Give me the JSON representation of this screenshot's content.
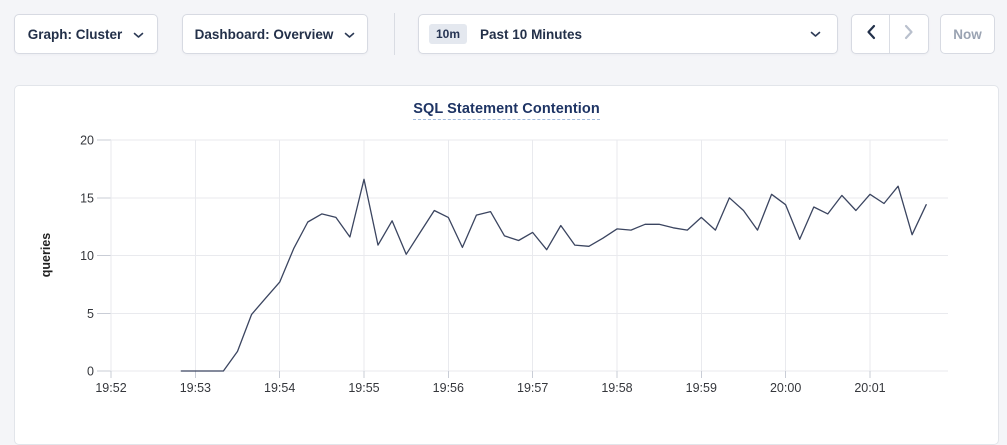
{
  "toolbar": {
    "graph_dropdown": {
      "label": "Graph: Cluster",
      "icon": "chevron-down"
    },
    "dashboard_dropdown": {
      "label": "Dashboard: Overview",
      "icon": "chevron-down"
    },
    "time_window": {
      "badge": "10m",
      "label": "Past 10 Minutes",
      "icon": "chevron-down"
    },
    "nav": {
      "prev_icon": "chevron-left",
      "next_icon": "chevron-right",
      "now_label": "Now"
    }
  },
  "panel": {
    "title": "SQL Statement Contention"
  },
  "colors": {
    "line": "#3b4560",
    "title": "#1e3464",
    "button_text": "#233049",
    "disabled_text": "#9aa3b2",
    "badge_bg": "#e4e8ef",
    "page_bg": "#f4f5f8"
  },
  "chart_data": {
    "type": "line",
    "title": "SQL Statement Contention",
    "xlabel": "",
    "ylabel": "queries",
    "ylim": [
      0,
      20
    ],
    "yticks": [
      0,
      5,
      10,
      15,
      20
    ],
    "xticks": [
      "19:52",
      "19:53",
      "19:54",
      "19:55",
      "19:56",
      "19:57",
      "19:58",
      "19:59",
      "20:00",
      "20:01"
    ],
    "xlim": [
      "19:52:00",
      "20:01:50"
    ],
    "grid": true,
    "legend": false,
    "line_color": "#3b4560",
    "x": [
      "19:52:50",
      "19:53:00",
      "19:53:10",
      "19:53:20",
      "19:53:30",
      "19:53:40",
      "19:53:50",
      "19:54:00",
      "19:54:10",
      "19:54:20",
      "19:54:30",
      "19:54:40",
      "19:54:50",
      "19:55:00",
      "19:55:10",
      "19:55:20",
      "19:55:30",
      "19:55:40",
      "19:55:50",
      "19:56:00",
      "19:56:10",
      "19:56:20",
      "19:56:30",
      "19:56:40",
      "19:56:50",
      "19:57:00",
      "19:57:10",
      "19:57:20",
      "19:57:30",
      "19:57:40",
      "19:57:50",
      "19:58:00",
      "19:58:10",
      "19:58:20",
      "19:58:30",
      "19:58:40",
      "19:58:50",
      "19:59:00",
      "19:59:10",
      "19:59:20",
      "19:59:30",
      "19:59:40",
      "19:59:50",
      "20:00:00",
      "20:00:10",
      "20:00:20",
      "20:00:30",
      "20:00:40",
      "20:00:50",
      "20:01:00",
      "20:01:10",
      "20:01:20",
      "20:01:30",
      "20:01:40"
    ],
    "values": [
      0,
      0,
      0,
      0,
      1.7,
      4.9,
      6.3,
      7.7,
      10.6,
      12.9,
      13.6,
      13.3,
      11.6,
      16.6,
      10.9,
      13.0,
      10.1,
      12.0,
      13.9,
      13.3,
      10.7,
      13.5,
      13.8,
      11.7,
      11.3,
      12.0,
      10.5,
      12.6,
      10.9,
      10.8,
      11.5,
      12.3,
      12.2,
      12.7,
      12.7,
      12.4,
      12.2,
      13.3,
      12.2,
      15.0,
      13.9,
      12.2,
      15.3,
      14.4,
      11.4,
      14.2,
      13.6,
      15.2,
      13.9,
      15.3,
      14.5,
      16.0,
      11.8,
      14.4
    ]
  }
}
